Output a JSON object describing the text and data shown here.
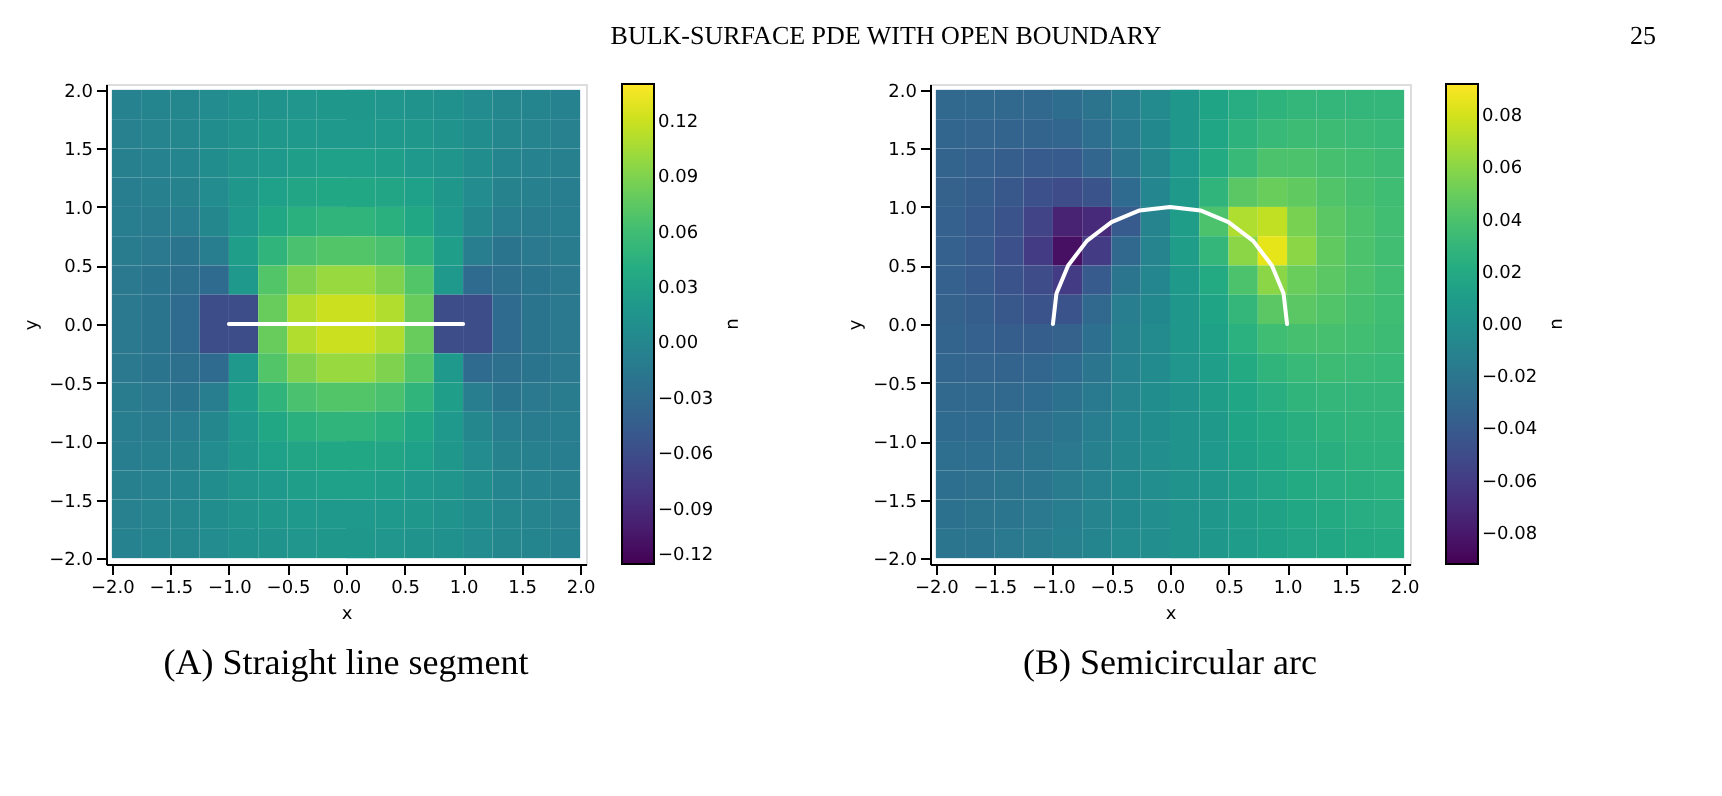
{
  "chart_data": [
    {
      "type": "other",
      "title": "BULK-SURFACE PDE WITH OPEN BOUNDARY",
      "annotations": [
        "25"
      ]
    },
    {
      "type": "heatmap",
      "title": "(A) Straight line segment",
      "xlabel": "x",
      "ylabel": "y",
      "clabel": "u",
      "x": [
        -1.875,
        -1.625,
        -1.375,
        -1.125,
        -0.875,
        -0.625,
        -0.375,
        -0.125,
        0.125,
        0.375,
        0.625,
        0.875,
        1.125,
        1.375,
        1.625,
        1.875
      ],
      "y": [
        1.875,
        1.625,
        1.375,
        1.125,
        0.875,
        0.625,
        0.375,
        0.125,
        -0.125,
        -0.375,
        -0.625,
        -0.875,
        -1.125,
        -1.375,
        -1.625,
        -1.875
      ],
      "cells": [
        [
          -0.006,
          -0.003,
          0.0,
          0.005,
          0.01,
          0.014,
          0.016,
          0.017,
          0.017,
          0.016,
          0.014,
          0.01,
          0.005,
          0.0,
          -0.003,
          -0.006
        ],
        [
          -0.007,
          -0.004,
          0.0,
          0.006,
          0.012,
          0.017,
          0.02,
          0.02,
          0.02,
          0.02,
          0.017,
          0.012,
          0.006,
          0.0,
          -0.004,
          -0.007
        ],
        [
          -0.008,
          -0.006,
          -0.002,
          0.006,
          0.015,
          0.02,
          0.025,
          0.027,
          0.027,
          0.025,
          0.02,
          0.015,
          0.006,
          -0.002,
          -0.006,
          -0.008
        ],
        [
          -0.01,
          -0.008,
          -0.005,
          0.005,
          0.018,
          0.027,
          0.033,
          0.035,
          0.035,
          0.033,
          0.027,
          0.018,
          0.005,
          -0.005,
          -0.008,
          -0.01
        ],
        [
          -0.01,
          -0.012,
          -0.01,
          0.0,
          0.02,
          0.035,
          0.045,
          0.05,
          0.05,
          0.045,
          0.035,
          0.02,
          0.0,
          -0.01,
          -0.012,
          -0.01
        ],
        [
          -0.012,
          -0.015,
          -0.02,
          -0.01,
          0.025,
          0.05,
          0.065,
          0.07,
          0.07,
          0.065,
          0.05,
          0.025,
          -0.01,
          -0.02,
          -0.015,
          -0.012
        ],
        [
          -0.015,
          -0.02,
          -0.025,
          -0.03,
          0.02,
          0.07,
          0.09,
          0.1,
          0.1,
          0.09,
          0.07,
          0.02,
          -0.03,
          -0.025,
          -0.02,
          -0.015
        ],
        [
          -0.015,
          -0.02,
          -0.03,
          -0.06,
          -0.06,
          0.08,
          0.11,
          0.12,
          0.12,
          0.11,
          0.08,
          -0.06,
          -0.06,
          -0.03,
          -0.02,
          -0.015
        ],
        [
          -0.015,
          -0.02,
          -0.03,
          -0.06,
          -0.06,
          0.08,
          0.11,
          0.12,
          0.12,
          0.11,
          0.08,
          -0.06,
          -0.06,
          -0.03,
          -0.02,
          -0.015
        ],
        [
          -0.015,
          -0.02,
          -0.025,
          -0.03,
          0.02,
          0.07,
          0.09,
          0.1,
          0.1,
          0.09,
          0.07,
          0.02,
          -0.03,
          -0.025,
          -0.02,
          -0.015
        ],
        [
          -0.012,
          -0.015,
          -0.02,
          -0.01,
          0.025,
          0.05,
          0.065,
          0.07,
          0.07,
          0.065,
          0.05,
          0.025,
          -0.01,
          -0.02,
          -0.015,
          -0.012
        ],
        [
          -0.01,
          -0.012,
          -0.01,
          0.0,
          0.02,
          0.035,
          0.045,
          0.05,
          0.05,
          0.045,
          0.035,
          0.02,
          0.0,
          -0.01,
          -0.012,
          -0.01
        ],
        [
          -0.01,
          -0.008,
          -0.005,
          0.005,
          0.018,
          0.027,
          0.033,
          0.035,
          0.035,
          0.033,
          0.027,
          0.018,
          0.005,
          -0.005,
          -0.008,
          -0.01
        ],
        [
          -0.008,
          -0.006,
          -0.002,
          0.006,
          0.015,
          0.02,
          0.025,
          0.027,
          0.027,
          0.025,
          0.02,
          0.015,
          0.006,
          -0.002,
          -0.006,
          -0.008
        ],
        [
          -0.007,
          -0.004,
          0.0,
          0.006,
          0.012,
          0.017,
          0.02,
          0.02,
          0.02,
          0.02,
          0.017,
          0.012,
          0.006,
          0.0,
          -0.004,
          -0.007
        ],
        [
          -0.006,
          -0.003,
          0.0,
          0.005,
          0.01,
          0.014,
          0.016,
          0.017,
          0.017,
          0.016,
          0.014,
          0.01,
          0.005,
          0.0,
          -0.003,
          -0.006
        ]
      ],
      "clim": [
        -0.12,
        0.14
      ],
      "cticks": [
        {
          "value": -0.12,
          "label": "−0.12"
        },
        {
          "value": -0.09,
          "label": "−0.09"
        },
        {
          "value": -0.06,
          "label": "−0.06"
        },
        {
          "value": -0.03,
          "label": "−0.03"
        },
        {
          "value": 0,
          "label": "0.00"
        },
        {
          "value": 0.03,
          "label": "0.03"
        },
        {
          "value": 0.06,
          "label": "0.06"
        },
        {
          "value": 0.09,
          "label": "0.09"
        },
        {
          "value": 0.12,
          "label": "0.12"
        }
      ],
      "xlim": [
        -2.05,
        2.05
      ],
      "ylim": [
        -2.05,
        2.05
      ],
      "xticks": [
        {
          "value": -2,
          "label": "−2.0"
        },
        {
          "value": -1.5,
          "label": "−1.5"
        },
        {
          "value": -1,
          "label": "−1.0"
        },
        {
          "value": -0.5,
          "label": "−0.5"
        },
        {
          "value": 0,
          "label": "0.0"
        },
        {
          "value": 0.5,
          "label": "0.5"
        },
        {
          "value": 1,
          "label": "1.0"
        },
        {
          "value": 1.5,
          "label": "1.5"
        },
        {
          "value": 2,
          "label": "2.0"
        }
      ],
      "yticks": [
        {
          "value": -2,
          "label": "−2.0"
        },
        {
          "value": -1.5,
          "label": "−1.5"
        },
        {
          "value": -1,
          "label": "−1.0"
        },
        {
          "value": -0.5,
          "label": "−0.5"
        },
        {
          "value": 0,
          "label": "0.0"
        },
        {
          "value": 0.5,
          "label": "0.5"
        },
        {
          "value": 1,
          "label": "1.0"
        },
        {
          "value": 1.5,
          "label": "1.5"
        },
        {
          "value": 2,
          "label": "2.0"
        }
      ],
      "series": [
        {
          "type": "line",
          "color": "#ffffff",
          "x": [
            -1,
            1
          ],
          "values": [
            0,
            0
          ]
        }
      ]
    },
    {
      "type": "heatmap",
      "title": "(B) Semicircular arc",
      "xlabel": "x",
      "ylabel": "y",
      "clabel": "u",
      "x": [
        -1.875,
        -1.625,
        -1.375,
        -1.125,
        -0.875,
        -0.625,
        -0.375,
        -0.125,
        0.125,
        0.375,
        0.625,
        0.875,
        1.125,
        1.375,
        1.625,
        1.875
      ],
      "y": [
        1.875,
        1.625,
        1.375,
        1.125,
        0.875,
        0.625,
        0.375,
        0.125,
        -0.125,
        -0.375,
        -0.625,
        -0.875,
        -1.125,
        -1.375,
        -1.625,
        -1.875
      ],
      "cells": [
        [
          -0.03,
          -0.03,
          -0.03,
          -0.03,
          -0.027,
          -0.022,
          -0.015,
          -0.005,
          0.005,
          0.015,
          0.022,
          0.027,
          0.03,
          0.03,
          0.03,
          0.03
        ],
        [
          -0.032,
          -0.033,
          -0.034,
          -0.034,
          -0.032,
          -0.026,
          -0.017,
          -0.006,
          0.006,
          0.017,
          0.026,
          0.032,
          0.034,
          0.034,
          0.033,
          0.032
        ],
        [
          -0.034,
          -0.036,
          -0.038,
          -0.04,
          -0.04,
          -0.032,
          -0.02,
          -0.007,
          0.007,
          0.02,
          0.032,
          0.04,
          0.04,
          0.038,
          0.036,
          0.034
        ],
        [
          -0.035,
          -0.038,
          -0.042,
          -0.047,
          -0.05,
          -0.045,
          -0.028,
          -0.008,
          0.008,
          0.028,
          0.045,
          0.05,
          0.047,
          0.042,
          0.038,
          0.035
        ],
        [
          -0.036,
          -0.04,
          -0.045,
          -0.055,
          -0.075,
          -0.07,
          -0.04,
          -0.01,
          0.01,
          0.04,
          0.07,
          0.075,
          0.055,
          0.045,
          0.04,
          0.036
        ],
        [
          -0.036,
          -0.04,
          -0.047,
          -0.06,
          -0.085,
          -0.06,
          -0.03,
          -0.01,
          0.01,
          0.03,
          0.06,
          0.085,
          0.06,
          0.047,
          0.04,
          0.036
        ],
        [
          -0.036,
          -0.04,
          -0.045,
          -0.05,
          -0.06,
          -0.04,
          -0.02,
          -0.008,
          0.008,
          0.02,
          0.04,
          0.06,
          0.05,
          0.045,
          0.04,
          0.036
        ],
        [
          -0.035,
          -0.038,
          -0.042,
          -0.045,
          -0.045,
          -0.03,
          -0.015,
          -0.006,
          0.006,
          0.015,
          0.03,
          0.045,
          0.045,
          0.042,
          0.038,
          0.035
        ],
        [
          -0.034,
          -0.036,
          -0.038,
          -0.038,
          -0.035,
          -0.025,
          -0.013,
          -0.005,
          0.005,
          0.013,
          0.025,
          0.035,
          0.038,
          0.038,
          0.036,
          0.034
        ],
        [
          -0.032,
          -0.033,
          -0.034,
          -0.032,
          -0.028,
          -0.02,
          -0.011,
          -0.004,
          0.004,
          0.011,
          0.02,
          0.028,
          0.032,
          0.034,
          0.033,
          0.032
        ],
        [
          -0.03,
          -0.03,
          -0.03,
          -0.028,
          -0.023,
          -0.017,
          -0.01,
          -0.003,
          0.003,
          0.01,
          0.017,
          0.023,
          0.028,
          0.03,
          0.03,
          0.03
        ],
        [
          -0.028,
          -0.028,
          -0.027,
          -0.024,
          -0.02,
          -0.015,
          -0.008,
          -0.003,
          0.003,
          0.008,
          0.015,
          0.02,
          0.024,
          0.027,
          0.028,
          0.028
        ],
        [
          -0.026,
          -0.026,
          -0.024,
          -0.022,
          -0.018,
          -0.013,
          -0.007,
          -0.002,
          0.002,
          0.007,
          0.013,
          0.018,
          0.022,
          0.024,
          0.026,
          0.026
        ],
        [
          -0.025,
          -0.024,
          -0.022,
          -0.02,
          -0.016,
          -0.011,
          -0.006,
          -0.002,
          0.002,
          0.006,
          0.011,
          0.016,
          0.02,
          0.022,
          0.024,
          0.025
        ],
        [
          -0.023,
          -0.022,
          -0.02,
          -0.018,
          -0.014,
          -0.01,
          -0.006,
          -0.002,
          0.002,
          0.006,
          0.01,
          0.014,
          0.018,
          0.02,
          0.022,
          0.023
        ],
        [
          -0.021,
          -0.02,
          -0.018,
          -0.016,
          -0.013,
          -0.009,
          -0.005,
          -0.002,
          0.002,
          0.005,
          0.009,
          0.013,
          0.016,
          0.018,
          0.02,
          0.021
        ]
      ],
      "clim": [
        -0.092,
        0.092
      ],
      "cticks": [
        {
          "value": -0.08,
          "label": "−0.08"
        },
        {
          "value": -0.06,
          "label": "−0.06"
        },
        {
          "value": -0.04,
          "label": "−0.04"
        },
        {
          "value": -0.02,
          "label": "−0.02"
        },
        {
          "value": 0,
          "label": "0.00"
        },
        {
          "value": 0.02,
          "label": "0.02"
        },
        {
          "value": 0.04,
          "label": "0.04"
        },
        {
          "value": 0.06,
          "label": "0.06"
        },
        {
          "value": 0.08,
          "label": "0.08"
        }
      ],
      "xlim": [
        -2.05,
        2.05
      ],
      "ylim": [
        -2.05,
        2.05
      ],
      "xticks": [
        {
          "value": -2,
          "label": "−2.0"
        },
        {
          "value": -1.5,
          "label": "−1.5"
        },
        {
          "value": -1,
          "label": "−1.0"
        },
        {
          "value": -0.5,
          "label": "−0.5"
        },
        {
          "value": 0,
          "label": "0.0"
        },
        {
          "value": 0.5,
          "label": "0.5"
        },
        {
          "value": 1,
          "label": "1.0"
        },
        {
          "value": 1.5,
          "label": "1.5"
        },
        {
          "value": 2,
          "label": "2.0"
        }
      ],
      "yticks": [
        {
          "value": -2,
          "label": "−2.0"
        },
        {
          "value": -1.5,
          "label": "−1.5"
        },
        {
          "value": -1,
          "label": "−1.0"
        },
        {
          "value": -0.5,
          "label": "−0.5"
        },
        {
          "value": 0,
          "label": "0.0"
        },
        {
          "value": 0.5,
          "label": "0.5"
        },
        {
          "value": 1,
          "label": "1.0"
        },
        {
          "value": 1.5,
          "label": "1.5"
        },
        {
          "value": 2,
          "label": "2.0"
        }
      ],
      "series": [
        {
          "type": "line",
          "color": "#ffffff",
          "x": [
            -1,
            -0.97,
            -0.87,
            -0.71,
            -0.5,
            -0.26,
            0,
            0.26,
            0.5,
            0.71,
            0.87,
            0.97,
            1
          ],
          "values": [
            0,
            0.26,
            0.5,
            0.71,
            0.87,
            0.97,
            1,
            0.97,
            0.87,
            0.71,
            0.5,
            0.26,
            0
          ]
        }
      ]
    }
  ]
}
